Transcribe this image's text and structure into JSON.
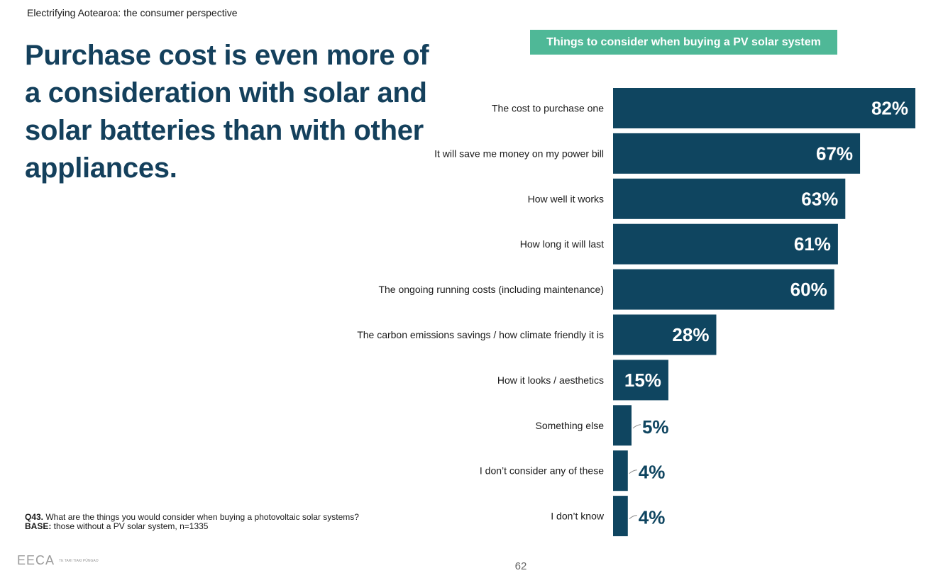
{
  "header": {
    "subtitle": "Electrifying Aotearoa: the consumer perspective",
    "headline": "Purchase cost is even more of a consideration with solar and solar batteries than with other appliances."
  },
  "footnote": {
    "question_label": "Q43.",
    "question_text": " What are the things you would consider when buying a photovoltaic solar systems?",
    "base_label": "BASE:",
    "base_text": " those without a PV solar system, n=1335"
  },
  "logo": {
    "mark": "EECA",
    "text": "TE TARI TIAKI PŪNGAO"
  },
  "page_number": "62",
  "colors": {
    "bar": "#0f4560",
    "title_bg": "#4fb897",
    "headline": "#14405c"
  },
  "chart_data": {
    "type": "bar",
    "orientation": "horizontal",
    "title": "Things to consider when buying a PV solar system",
    "categories": [
      "The cost to purchase one",
      "It will save me money on my power bill",
      "How well it works",
      "How long it will last",
      "The ongoing running costs (including maintenance)",
      "The carbon emissions savings / how climate friendly it is",
      "How it looks / aesthetics",
      "Something else",
      "I don’t consider any of these",
      "I don’t know"
    ],
    "values": [
      82,
      67,
      63,
      61,
      60,
      28,
      15,
      5,
      4,
      4
    ],
    "labels": [
      "82%",
      "67%",
      "63%",
      "61%",
      "60%",
      "28%",
      "15%",
      "5%",
      "4%",
      "4%"
    ],
    "unit": "%",
    "xlim": [
      0,
      82
    ]
  }
}
